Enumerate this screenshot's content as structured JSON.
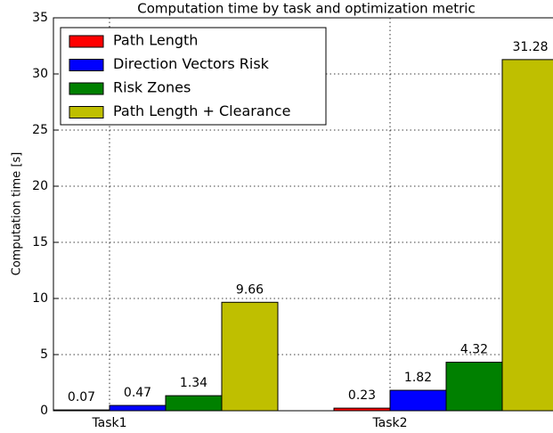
{
  "chart_data": {
    "type": "bar",
    "title": "Computation time by task and optimization metric",
    "y_label": "Computation time [s]",
    "categories": [
      "Task1",
      "Task2"
    ],
    "series": [
      {
        "name": "Path Length",
        "color": "#ff0000",
        "values": [
          0.07,
          0.23
        ]
      },
      {
        "name": "Direction Vectors Risk",
        "color": "#0000ff",
        "values": [
          0.47,
          1.82
        ]
      },
      {
        "name": "Risk Zones",
        "color": "#008000",
        "values": [
          1.34,
          4.32
        ]
      },
      {
        "name": "Path Length + Clearance",
        "color": "#bfbf00",
        "values": [
          9.66,
          31.28
        ]
      }
    ],
    "ylim": [
      0,
      35
    ],
    "yticks": [
      0,
      5,
      10,
      15,
      20,
      25,
      30,
      35
    ],
    "grid": true,
    "legend": "upper left"
  }
}
